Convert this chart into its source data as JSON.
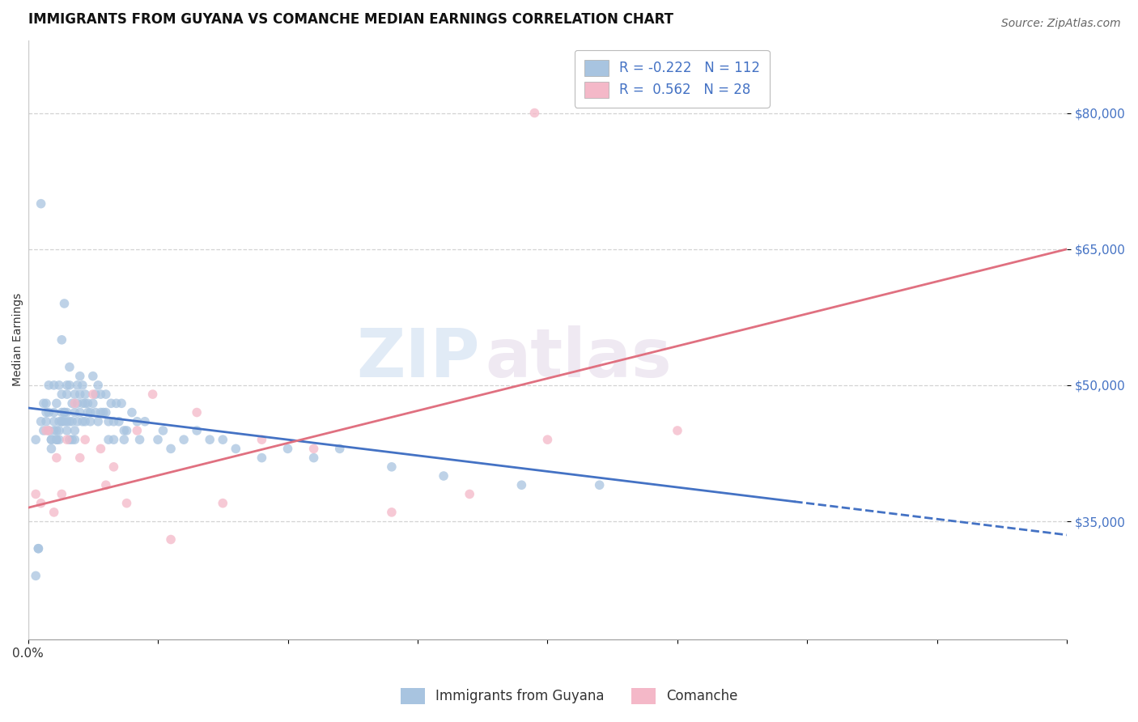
{
  "title": "IMMIGRANTS FROM GUYANA VS COMANCHE MEDIAN EARNINGS CORRELATION CHART",
  "source": "Source: ZipAtlas.com",
  "ylabel": "Median Earnings",
  "xlim": [
    0.0,
    0.4
  ],
  "ylim": [
    22000,
    88000
  ],
  "yticks": [
    35000,
    50000,
    65000,
    80000
  ],
  "xtick_positions": [
    0.0,
    0.05,
    0.1,
    0.15,
    0.2,
    0.25,
    0.3,
    0.35,
    0.4
  ],
  "xtick_labels_sparse": {
    "0.0": "0.0%"
  },
  "ytick_labels": [
    "$35,000",
    "$50,000",
    "$65,000",
    "$80,000"
  ],
  "blue_R": -0.222,
  "blue_N": 112,
  "pink_R": 0.562,
  "pink_N": 28,
  "blue_color": "#a8c4e0",
  "pink_color": "#f4b8c8",
  "blue_line_color": "#4472c4",
  "pink_line_color": "#e07080",
  "legend_label_blue": "Immigrants from Guyana",
  "legend_label_pink": "Comanche",
  "watermark": "ZIPatlas",
  "blue_scatter_x": [
    0.003,
    0.004,
    0.005,
    0.006,
    0.007,
    0.007,
    0.008,
    0.008,
    0.009,
    0.009,
    0.01,
    0.01,
    0.01,
    0.011,
    0.011,
    0.011,
    0.012,
    0.012,
    0.012,
    0.013,
    0.013,
    0.013,
    0.013,
    0.014,
    0.014,
    0.014,
    0.015,
    0.015,
    0.015,
    0.015,
    0.016,
    0.016,
    0.016,
    0.017,
    0.017,
    0.017,
    0.018,
    0.018,
    0.018,
    0.018,
    0.019,
    0.019,
    0.019,
    0.02,
    0.02,
    0.02,
    0.021,
    0.021,
    0.021,
    0.022,
    0.022,
    0.022,
    0.023,
    0.023,
    0.024,
    0.024,
    0.025,
    0.025,
    0.026,
    0.026,
    0.027,
    0.027,
    0.028,
    0.028,
    0.029,
    0.03,
    0.03,
    0.031,
    0.031,
    0.032,
    0.033,
    0.033,
    0.034,
    0.035,
    0.036,
    0.037,
    0.037,
    0.038,
    0.04,
    0.042,
    0.043,
    0.045,
    0.05,
    0.052,
    0.055,
    0.06,
    0.065,
    0.07,
    0.075,
    0.08,
    0.09,
    0.1,
    0.11,
    0.12,
    0.14,
    0.16,
    0.19,
    0.22,
    0.003,
    0.004,
    0.005,
    0.006,
    0.007,
    0.008,
    0.009,
    0.01,
    0.011,
    0.012,
    0.013,
    0.014,
    0.015,
    0.016
  ],
  "blue_scatter_y": [
    44000,
    32000,
    70000,
    48000,
    48000,
    47000,
    50000,
    47000,
    44000,
    43000,
    50000,
    47000,
    46000,
    44000,
    48000,
    45000,
    50000,
    46000,
    44000,
    55000,
    49000,
    47000,
    46000,
    59000,
    47000,
    46000,
    50000,
    49000,
    47000,
    46000,
    52000,
    50000,
    46000,
    44000,
    48000,
    46000,
    49000,
    47000,
    45000,
    44000,
    50000,
    48000,
    46000,
    51000,
    49000,
    47000,
    50000,
    48000,
    46000,
    49000,
    48000,
    46000,
    48000,
    47000,
    47000,
    46000,
    51000,
    48000,
    49000,
    47000,
    50000,
    46000,
    49000,
    47000,
    47000,
    49000,
    47000,
    46000,
    44000,
    48000,
    46000,
    44000,
    48000,
    46000,
    48000,
    45000,
    44000,
    45000,
    47000,
    46000,
    44000,
    46000,
    44000,
    45000,
    43000,
    44000,
    45000,
    44000,
    44000,
    43000,
    42000,
    43000,
    42000,
    43000,
    41000,
    40000,
    39000,
    39000,
    29000,
    32000,
    46000,
    45000,
    46000,
    45000,
    44000,
    45000,
    44000,
    45000,
    46000,
    47000,
    45000,
    44000
  ],
  "pink_scatter_x": [
    0.003,
    0.005,
    0.007,
    0.008,
    0.01,
    0.011,
    0.013,
    0.015,
    0.018,
    0.02,
    0.022,
    0.025,
    0.028,
    0.03,
    0.033,
    0.038,
    0.042,
    0.048,
    0.055,
    0.065,
    0.075,
    0.09,
    0.11,
    0.14,
    0.17,
    0.2,
    0.25,
    0.195
  ],
  "pink_scatter_y": [
    38000,
    37000,
    45000,
    45000,
    36000,
    42000,
    38000,
    44000,
    48000,
    42000,
    44000,
    49000,
    43000,
    39000,
    41000,
    37000,
    45000,
    49000,
    33000,
    47000,
    37000,
    44000,
    43000,
    36000,
    38000,
    44000,
    45000,
    80000
  ],
  "blue_line_x0": 0.0,
  "blue_line_x1": 0.4,
  "blue_line_y0": 47500,
  "blue_line_y1": 33500,
  "blue_line_solid_end": 0.295,
  "pink_line_x0": 0.0,
  "pink_line_x1": 0.4,
  "pink_line_y0": 36500,
  "pink_line_y1": 65000,
  "background_color": "#ffffff",
  "grid_color": "#c8c8c8",
  "title_fontsize": 12,
  "axis_label_fontsize": 10,
  "tick_fontsize": 11,
  "legend_fontsize": 12
}
